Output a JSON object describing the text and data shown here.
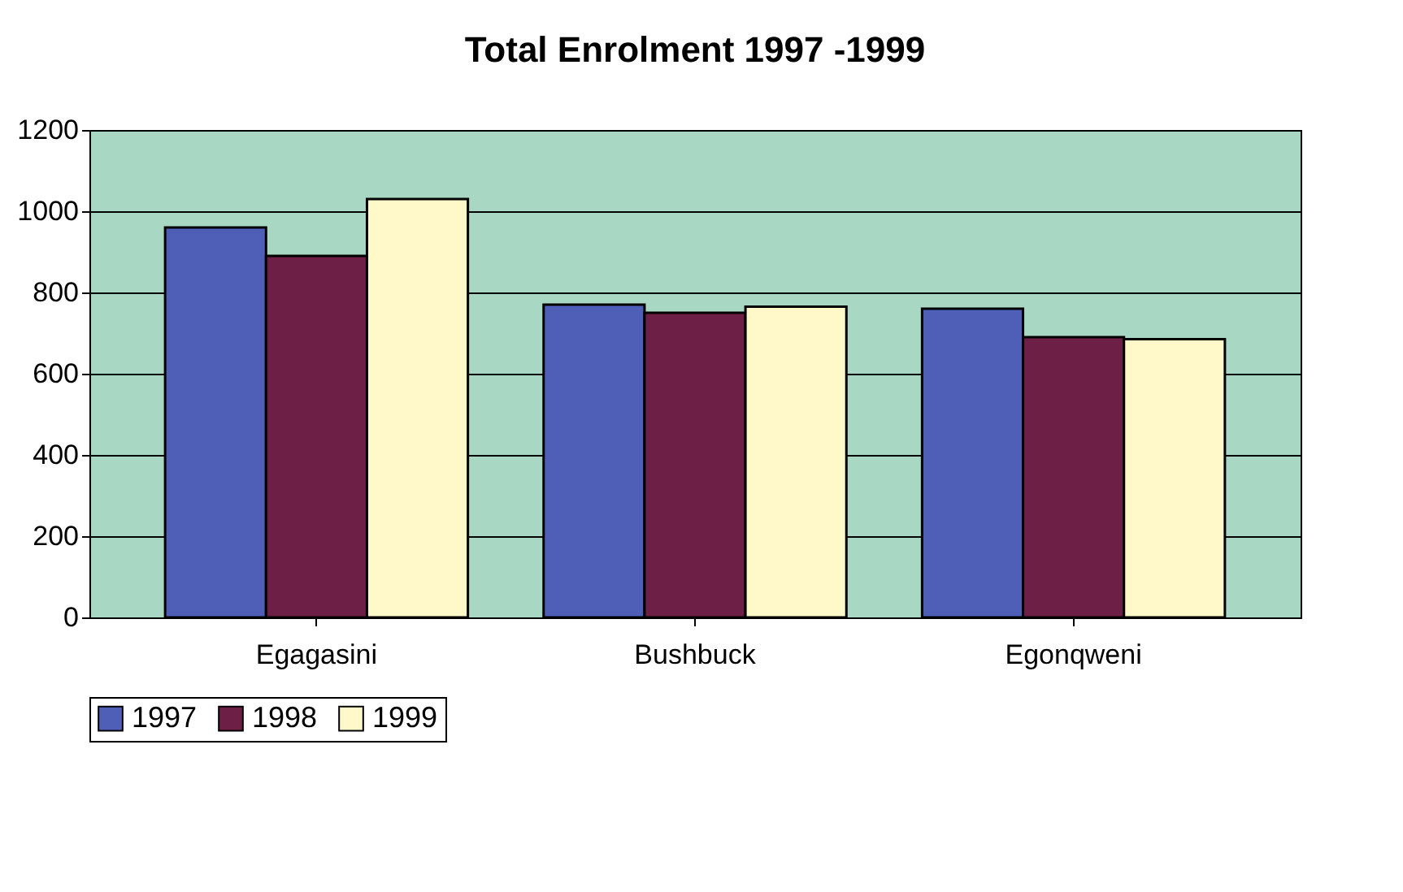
{
  "chart_data": {
    "type": "bar",
    "title": "Total Enrolment 1997 -1999",
    "categories": [
      "Egagasini",
      "Bushbuck",
      "Egonqweni"
    ],
    "series": [
      {
        "name": "1997",
        "color": "#4f5fb8",
        "values": [
          960,
          770,
          760
        ]
      },
      {
        "name": "1998",
        "color": "#6e1f45",
        "values": [
          890,
          750,
          690
        ]
      },
      {
        "name": "1999",
        "color": "#fff8c8",
        "values": [
          1030,
          765,
          685
        ]
      }
    ],
    "ylim": [
      0,
      1200
    ],
    "yticks": [
      0,
      200,
      400,
      600,
      800,
      1000,
      1200
    ],
    "grid": "y",
    "legend": "bottom"
  }
}
